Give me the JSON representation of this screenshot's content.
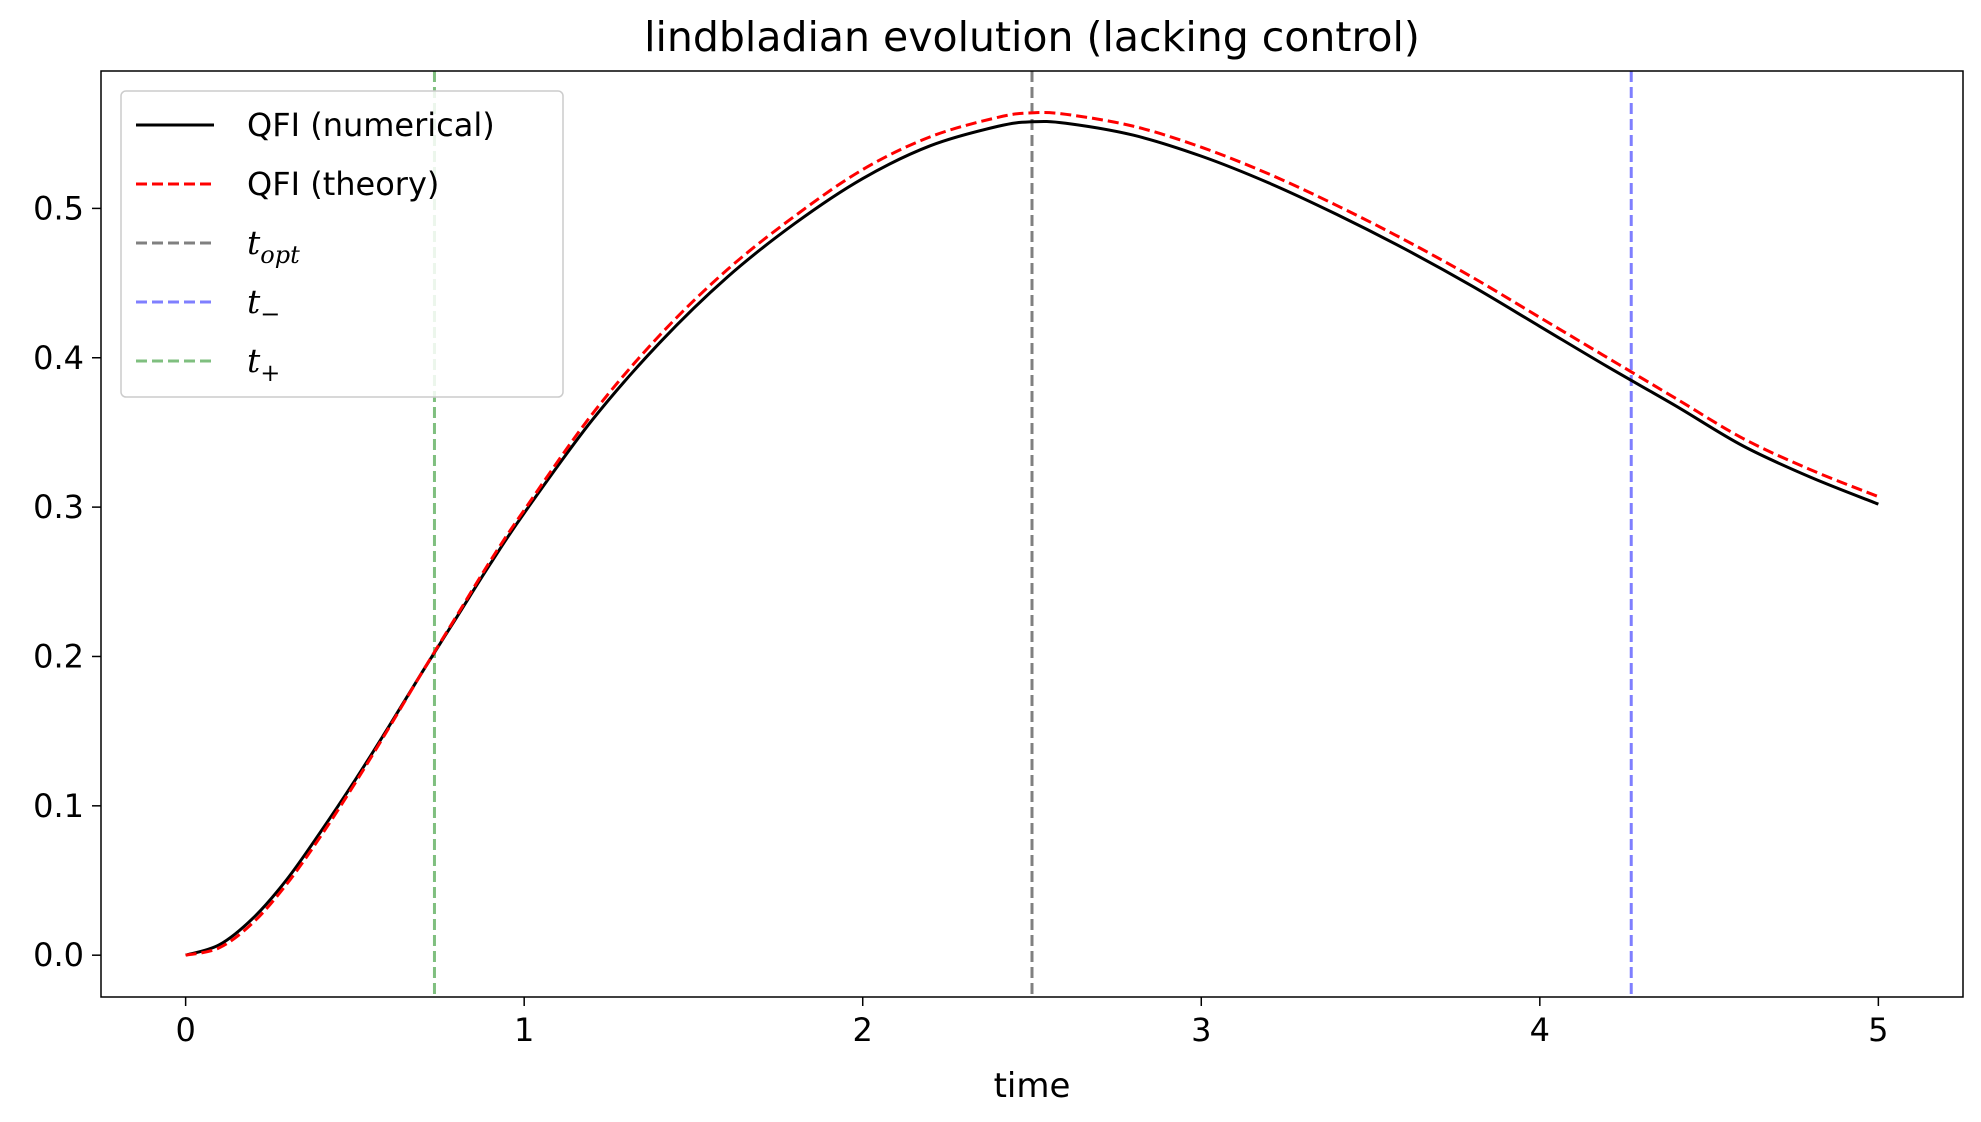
{
  "chart_data": {
    "type": "line",
    "title": "lindbladian evolution (lacking control)",
    "xlabel": "time",
    "ylabel": "",
    "xlim": [
      -0.25,
      5.25
    ],
    "ylim": [
      -0.028,
      0.592
    ],
    "xticks": [
      0,
      1,
      2,
      3,
      4,
      5
    ],
    "xtick_labels": [
      "0",
      "1",
      "2",
      "3",
      "4",
      "5"
    ],
    "yticks": [
      0.0,
      0.1,
      0.2,
      0.3,
      0.4,
      0.5
    ],
    "ytick_labels": [
      "0.0",
      "0.1",
      "0.2",
      "0.3",
      "0.4",
      "0.5"
    ],
    "grid": false,
    "legend_position": "upper-left",
    "series": [
      {
        "name": "QFI (numerical)",
        "style": "solid",
        "color": "#000000",
        "x": [
          0,
          0.1,
          0.2,
          0.3,
          0.4,
          0.5,
          0.6,
          0.7,
          0.8,
          0.9,
          1.0,
          1.2,
          1.4,
          1.6,
          1.8,
          2.0,
          2.2,
          2.4,
          2.5,
          2.6,
          2.8,
          3.0,
          3.2,
          3.4,
          3.6,
          3.8,
          4.0,
          4.2,
          4.4,
          4.6,
          4.8,
          5.0
        ],
        "y": [
          0.0,
          0.007,
          0.025,
          0.051,
          0.083,
          0.117,
          0.153,
          0.19,
          0.226,
          0.262,
          0.296,
          0.358,
          0.41,
          0.454,
          0.49,
          0.52,
          0.542,
          0.555,
          0.558,
          0.557,
          0.549,
          0.535,
          0.517,
          0.496,
          0.473,
          0.448,
          0.421,
          0.394,
          0.368,
          0.341,
          0.32,
          0.302
        ]
      },
      {
        "name": "QFI (theory)",
        "style": "dashed",
        "color": "#ff0000",
        "x": [
          0,
          0.1,
          0.2,
          0.3,
          0.4,
          0.5,
          0.6,
          0.7,
          0.8,
          0.9,
          1.0,
          1.2,
          1.4,
          1.6,
          1.8,
          2.0,
          2.2,
          2.4,
          2.5,
          2.6,
          2.8,
          3.0,
          3.2,
          3.4,
          3.6,
          3.8,
          4.0,
          4.2,
          4.4,
          4.6,
          4.8,
          5.0
        ],
        "y": [
          0.0,
          0.005,
          0.022,
          0.048,
          0.08,
          0.115,
          0.152,
          0.19,
          0.227,
          0.264,
          0.298,
          0.362,
          0.415,
          0.459,
          0.495,
          0.526,
          0.548,
          0.561,
          0.564,
          0.563,
          0.555,
          0.541,
          0.523,
          0.502,
          0.479,
          0.454,
          0.427,
          0.4,
          0.373,
          0.346,
          0.325,
          0.307
        ]
      }
    ],
    "vlines": [
      {
        "name": "t_opt",
        "x": 2.5,
        "color": "#808080",
        "style": "dashed"
      },
      {
        "name": "t_−",
        "x": 4.27,
        "color": "#7f7fff",
        "style": "dashed"
      },
      {
        "name": "t_+",
        "x": 0.735,
        "color": "#7fbf7f",
        "style": "dashed"
      }
    ],
    "legend": {
      "entries": [
        {
          "label": "QFI (numerical)",
          "kind": "text",
          "color": "#000000",
          "style": "solid"
        },
        {
          "label": "QFI (theory)",
          "kind": "text",
          "color": "#ff0000",
          "style": "dashed"
        },
        {
          "label": "t",
          "sub": "opt",
          "kind": "math",
          "color": "#808080",
          "style": "dashed"
        },
        {
          "label": "t",
          "sub": "−",
          "kind": "math",
          "color": "#7f7fff",
          "style": "dashed"
        },
        {
          "label": "t",
          "sub": "+",
          "kind": "math",
          "color": "#7fbf7f",
          "style": "dashed"
        }
      ]
    }
  }
}
